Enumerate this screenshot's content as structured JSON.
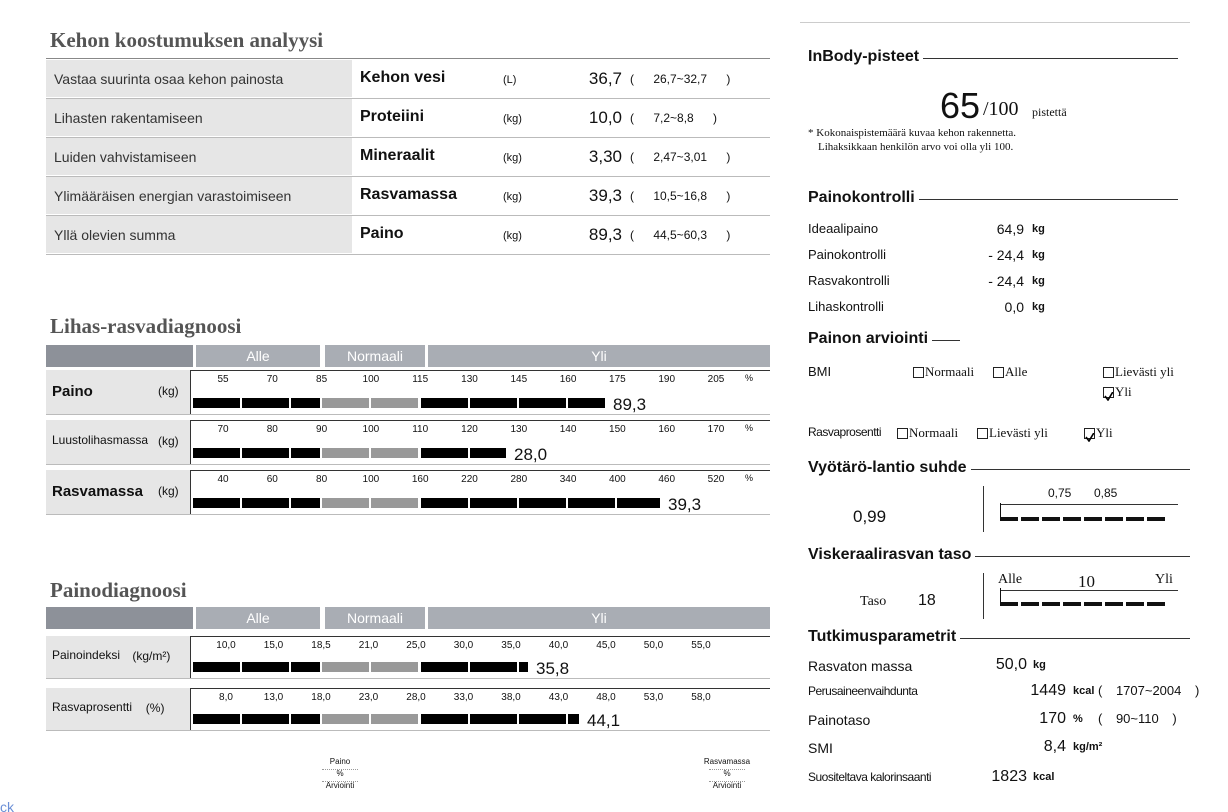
{
  "composition": {
    "title": "Kehon koostumuksen analyysi",
    "rows": [
      {
        "description": "Vastaa suurinta osaa kehon painosta",
        "name": "Kehon vesi",
        "unit": "(L)",
        "value": "36,7",
        "range": "( 26,7~32,7 )"
      },
      {
        "description": "Lihasten rakentamiseen",
        "name": "Proteiini",
        "unit": "(kg)",
        "value": "10,0",
        "range": "( 7,2~8,8 )"
      },
      {
        "description": "Luiden vahvistamiseen",
        "name": "Mineraalit",
        "unit": "(kg)",
        "value": "3,30",
        "range": "( 2,47~3,01 )"
      },
      {
        "description": "Ylimääräisen energian varastoimiseen",
        "name": "Rasvamassa",
        "unit": "(kg)",
        "value": "39,3",
        "range": "( 10,5~16,8 )"
      },
      {
        "description": "Yllä olevien summa",
        "name": "Paino",
        "unit": "(kg)",
        "value": "89,3",
        "range": "( 44,5~60,3 )"
      }
    ]
  },
  "muscle_fat": {
    "title": "Lihas-rasvadiagnoosi",
    "header": [
      "Alle",
      "Normaali",
      "Yli"
    ],
    "rows": [
      {
        "name": "Paino",
        "unit": "(kg)",
        "ticks": [
          "55",
          "70",
          "85",
          "100",
          "115",
          "130",
          "145",
          "160",
          "175",
          "190",
          "205"
        ],
        "percent": "%",
        "value": "89,3"
      },
      {
        "name": "Luustolihasmassa",
        "unit": "(kg)",
        "ticks": [
          "70",
          "80",
          "90",
          "100",
          "110",
          "120",
          "130",
          "140",
          "150",
          "160",
          "170"
        ],
        "percent": "%",
        "value": "28,0"
      },
      {
        "name": "Rasvamassa",
        "unit": "(kg)",
        "ticks": [
          "40",
          "60",
          "80",
          "100",
          "160",
          "220",
          "280",
          "340",
          "400",
          "460",
          "520"
        ],
        "percent": "%",
        "value": "39,3"
      }
    ]
  },
  "weight_diagnosis": {
    "title": "Painodiagnoosi",
    "header": [
      "Alle",
      "Normaali",
      "Yli"
    ],
    "rows": [
      {
        "name": "Painoindeksi",
        "unit": "(kg/m²)",
        "ticks": [
          "10,0",
          "15,0",
          "18,5",
          "21,0",
          "25,0",
          "30,0",
          "35,0",
          "40,0",
          "45,0",
          "50,0",
          "55,0"
        ],
        "value": "35,8"
      },
      {
        "name": "Rasvaprosentti",
        "unit": "(%)",
        "ticks": [
          "8,0",
          "13,0",
          "18,0",
          "23,0",
          "28,0",
          "33,0",
          "38,0",
          "43,0",
          "48,0",
          "53,0",
          "58,0"
        ],
        "value": "44,1"
      }
    ]
  },
  "footer_keys": [
    [
      "Paino",
      "%",
      "Arviointi"
    ],
    [
      "Rasvamassa",
      "%",
      "Arviointi"
    ]
  ],
  "footer_link": "ck",
  "score": {
    "title": "InBody-pisteet",
    "value": "65",
    "max": "/100",
    "unit": "pistettä",
    "note": [
      "* Kokonaispistemäärä kuvaa kehon rakennetta.",
      "Lihaksikkaan henkilön arvo voi olla yli 100."
    ]
  },
  "weight_control": {
    "title": "Painokontrolli",
    "rows": [
      {
        "label": "Ideaalipaino",
        "value": "64,9",
        "unit": "kg"
      },
      {
        "label": "Painokontrolli",
        "value": "- 24,4",
        "unit": "kg"
      },
      {
        "label": "Rasvakontrolli",
        "value": "- 24,4",
        "unit": "kg"
      },
      {
        "label": "Lihaskontrolli",
        "value": "0,0",
        "unit": "kg"
      }
    ]
  },
  "weight_assessment": {
    "title": "Painon arviointi",
    "rows": [
      {
        "label": "BMI",
        "options": [
          {
            "text": "Normaali",
            "checked": false
          },
          {
            "text": "Alle",
            "checked": false
          },
          {
            "text": "Lievästi yli",
            "checked": false
          },
          {
            "text": "Yli",
            "checked": true
          }
        ]
      },
      {
        "label": "Rasvaprosentti",
        "options": [
          {
            "text": "Normaali",
            "checked": false
          },
          {
            "text": "Lievästi yli",
            "checked": false
          },
          {
            "text": "Yli",
            "checked": true
          }
        ]
      }
    ]
  },
  "waist_hip": {
    "title": "Vyötärö-lantio suhde",
    "value": "0,99",
    "scale": [
      "0,75",
      "0,85"
    ]
  },
  "visceral": {
    "title": "Viskeraalirasvan taso",
    "label": "Taso",
    "value": "18",
    "scale": [
      "Alle",
      "10",
      "Yli"
    ]
  },
  "parameters": {
    "title": "Tutkimusparametrit",
    "rows": [
      {
        "label": "Rasvaton massa",
        "value": "50,0",
        "unit": "kg"
      },
      {
        "label": "Perusaineenvaihdunta",
        "value": "1449",
        "unit": "kcal",
        "range": "( 1707~2004 )"
      },
      {
        "label": "Painotaso",
        "value": "170",
        "unit": "%",
        "range": "( 90~110 )"
      },
      {
        "label": "SMI",
        "value": "8,4",
        "unit": "kg/m²"
      },
      {
        "label": "Suositeltava kalorinsaanti",
        "value": "1823",
        "unit": "kcal"
      }
    ]
  }
}
